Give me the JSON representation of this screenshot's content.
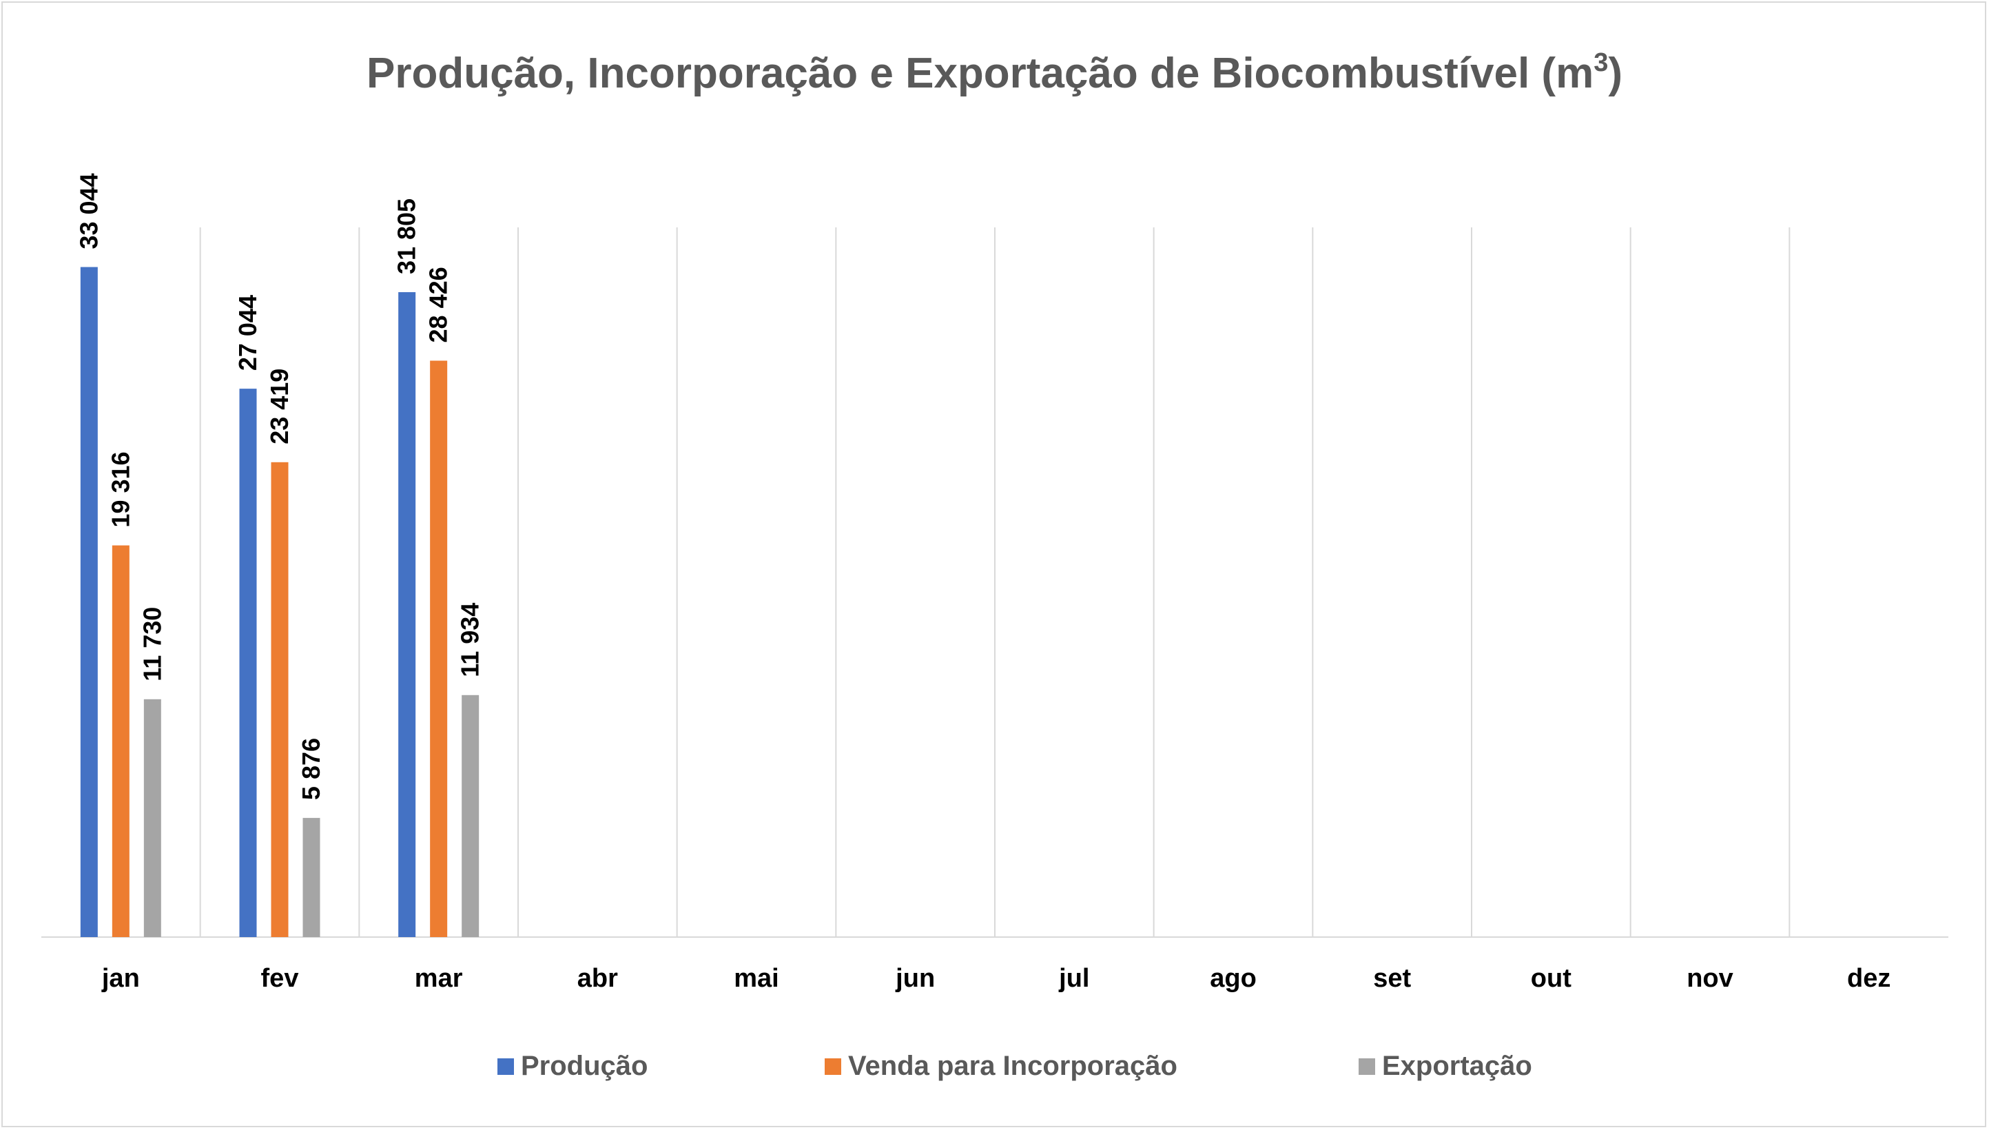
{
  "chart_data": {
    "type": "bar",
    "title": "Produção, Incorporação e Exportação de Biocombustível (m",
    "title_superscript": "3",
    "title_close": ")",
    "categories": [
      "jan",
      "fev",
      "mar",
      "abr",
      "mai",
      "jun",
      "jul",
      "ago",
      "set",
      "out",
      "nov",
      "dez"
    ],
    "series": [
      {
        "name": "Produção",
        "color": "#4472C4",
        "values": [
          33044,
          27044,
          31805,
          null,
          null,
          null,
          null,
          null,
          null,
          null,
          null,
          null
        ],
        "labels": [
          "33 044",
          "27 044",
          "31 805"
        ]
      },
      {
        "name": "Venda para Incorporação",
        "color": "#ED7D31",
        "values": [
          19316,
          23419,
          28426,
          null,
          null,
          null,
          null,
          null,
          null,
          null,
          null,
          null
        ],
        "labels": [
          "19 316",
          "23 419",
          "28 426"
        ]
      },
      {
        "name": "Exportação",
        "color": "#A5A5A5",
        "values": [
          11730,
          5876,
          11934,
          null,
          null,
          null,
          null,
          null,
          null,
          null,
          null,
          null
        ],
        "labels": [
          "11 730",
          "5 876",
          "11 934"
        ]
      }
    ],
    "ylim": [
      0,
      35000
    ],
    "grid": "vertical",
    "legend_position": "bottom"
  }
}
